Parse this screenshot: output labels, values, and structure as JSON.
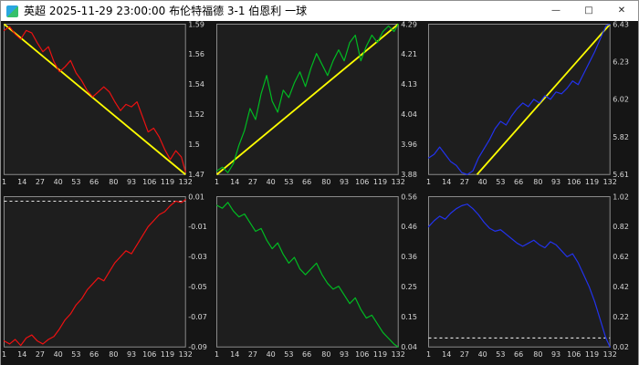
{
  "window": {
    "title": "英超 2025-11-29 23:00:00 布伦特福德 3-1 伯恩利 一球",
    "controls": {
      "minimize": "—",
      "maximize": "□",
      "close": "✕"
    }
  },
  "colors": {
    "plot_bg": "#1e1e1e",
    "border": "#8a8a8a",
    "axis_text": "#d8d8d8",
    "trend": "#ffff00",
    "ref_line": "#ffffff",
    "red": "#ee1111",
    "green": "#00bb22",
    "blue": "#2233ee"
  },
  "chart_data": [
    {
      "id": "top-left-red-odds",
      "type": "line",
      "line_color": "#ee1111",
      "ylim": [
        1.47,
        1.59
      ],
      "ytick_labels": [
        "1.59",
        "1.56",
        "1.54",
        "1.52",
        "1.5",
        "1.47"
      ],
      "xticks": [
        1,
        14,
        27,
        40,
        53,
        66,
        80,
        93,
        106,
        119,
        132
      ],
      "x": [
        1,
        5,
        9,
        13,
        17,
        21,
        25,
        29,
        33,
        37,
        41,
        45,
        49,
        53,
        57,
        61,
        65,
        69,
        73,
        77,
        81,
        85,
        89,
        93,
        97,
        101,
        105,
        109,
        113,
        117,
        121,
        125,
        129,
        132
      ],
      "values": [
        1.585,
        1.588,
        1.582,
        1.578,
        1.585,
        1.583,
        1.575,
        1.568,
        1.572,
        1.56,
        1.552,
        1.556,
        1.561,
        1.551,
        1.545,
        1.537,
        1.532,
        1.536,
        1.54,
        1.536,
        1.528,
        1.521,
        1.526,
        1.524,
        1.528,
        1.516,
        1.504,
        1.507,
        1.5,
        1.49,
        1.482,
        1.489,
        1.484,
        1.472
      ],
      "trend_line": {
        "x1": 1,
        "v1": 1.59,
        "x2": 132,
        "v2": 1.47
      },
      "ref_line": null
    },
    {
      "id": "top-middle-green-odds",
      "type": "line",
      "line_color": "#00bb22",
      "ylim": [
        3.88,
        4.29
      ],
      "ytick_labels": [
        "4.29",
        "4.21",
        "4.13",
        "4.04",
        "3.96",
        "3.88"
      ],
      "xticks": [
        1,
        14,
        27,
        40,
        53,
        66,
        80,
        93,
        106,
        119,
        132
      ],
      "x": [
        1,
        5,
        9,
        13,
        17,
        21,
        25,
        29,
        33,
        37,
        41,
        45,
        49,
        53,
        57,
        61,
        65,
        69,
        73,
        77,
        81,
        85,
        89,
        93,
        97,
        101,
        105,
        109,
        113,
        117,
        121,
        125,
        129,
        132
      ],
      "values": [
        3.89,
        3.9,
        3.885,
        3.91,
        3.96,
        4.0,
        4.06,
        4.03,
        4.1,
        4.15,
        4.08,
        4.05,
        4.11,
        4.09,
        4.13,
        4.16,
        4.12,
        4.17,
        4.21,
        4.18,
        4.15,
        4.19,
        4.22,
        4.19,
        4.24,
        4.26,
        4.19,
        4.23,
        4.26,
        4.24,
        4.27,
        4.285,
        4.27,
        4.29
      ],
      "trend_line": {
        "x1": 1,
        "v1": 3.88,
        "x2": 132,
        "v2": 4.29
      },
      "ref_line": null
    },
    {
      "id": "top-right-blue-odds",
      "type": "line",
      "line_color": "#2233ee",
      "ylim": [
        5.61,
        6.43
      ],
      "ytick_labels": [
        "6.43",
        "6.23",
        "6.02",
        "5.82",
        "5.61"
      ],
      "xticks": [
        1,
        14,
        27,
        40,
        53,
        66,
        80,
        93,
        106,
        119,
        132
      ],
      "x": [
        1,
        5,
        9,
        13,
        17,
        21,
        25,
        29,
        33,
        37,
        41,
        45,
        49,
        53,
        57,
        61,
        65,
        69,
        73,
        77,
        81,
        85,
        89,
        93,
        97,
        101,
        105,
        109,
        113,
        117,
        121,
        125,
        129,
        132
      ],
      "values": [
        5.7,
        5.72,
        5.76,
        5.72,
        5.68,
        5.66,
        5.62,
        5.61,
        5.63,
        5.7,
        5.75,
        5.8,
        5.86,
        5.9,
        5.88,
        5.93,
        5.97,
        6.0,
        5.98,
        6.02,
        6.0,
        6.04,
        6.02,
        6.06,
        6.05,
        6.08,
        6.12,
        6.1,
        6.16,
        6.22,
        6.28,
        6.35,
        6.42,
        6.43
      ],
      "trend_line": {
        "x1": 36,
        "v1": 5.61,
        "x2": 132,
        "v2": 6.43
      },
      "ref_line": null
    },
    {
      "id": "bottom-left-red-index",
      "type": "line",
      "line_color": "#ee1111",
      "ylim": [
        -0.09,
        0.01
      ],
      "ytick_labels": [
        "0.01",
        "-0.01",
        "-0.03",
        "-0.05",
        "-0.07",
        "-0.09"
      ],
      "xticks": [
        1,
        14,
        27,
        40,
        53,
        66,
        80,
        93,
        106,
        119,
        132
      ],
      "x": [
        1,
        5,
        9,
        13,
        17,
        21,
        25,
        29,
        33,
        37,
        41,
        45,
        49,
        53,
        57,
        61,
        65,
        69,
        73,
        77,
        81,
        85,
        89,
        93,
        97,
        101,
        105,
        109,
        113,
        117,
        121,
        125,
        129,
        132
      ],
      "values": [
        -0.086,
        -0.088,
        -0.085,
        -0.089,
        -0.084,
        -0.082,
        -0.086,
        -0.088,
        -0.085,
        -0.083,
        -0.078,
        -0.072,
        -0.068,
        -0.062,
        -0.058,
        -0.052,
        -0.048,
        -0.044,
        -0.046,
        -0.04,
        -0.034,
        -0.03,
        -0.026,
        -0.028,
        -0.022,
        -0.016,
        -0.01,
        -0.006,
        -0.002,
        0.0,
        0.004,
        0.007,
        0.006,
        0.008
      ],
      "trend_line": null,
      "ref_line": 0.007
    },
    {
      "id": "bottom-middle-green-index",
      "type": "line",
      "line_color": "#00bb22",
      "ylim": [
        0.04,
        0.56
      ],
      "ytick_labels": [
        "0.56",
        "0.46",
        "0.36",
        "0.25",
        "0.15",
        "0.04"
      ],
      "xticks": [
        1,
        14,
        27,
        40,
        53,
        66,
        80,
        93,
        106,
        119,
        132
      ],
      "x": [
        1,
        5,
        9,
        13,
        17,
        21,
        25,
        29,
        33,
        37,
        41,
        45,
        49,
        53,
        57,
        61,
        65,
        69,
        73,
        77,
        81,
        85,
        89,
        93,
        97,
        101,
        105,
        109,
        113,
        117,
        121,
        125,
        129,
        132
      ],
      "values": [
        0.53,
        0.52,
        0.54,
        0.51,
        0.49,
        0.5,
        0.47,
        0.44,
        0.45,
        0.41,
        0.38,
        0.4,
        0.36,
        0.33,
        0.35,
        0.31,
        0.29,
        0.31,
        0.33,
        0.29,
        0.26,
        0.24,
        0.25,
        0.22,
        0.19,
        0.21,
        0.17,
        0.14,
        0.15,
        0.12,
        0.09,
        0.07,
        0.05,
        0.04
      ],
      "trend_line": null,
      "ref_line": null
    },
    {
      "id": "bottom-right-blue-index",
      "type": "line",
      "line_color": "#2233ee",
      "ylim": [
        0.02,
        1.02
      ],
      "ytick_labels": [
        "1.02",
        "0.82",
        "0.62",
        "0.42",
        "0.22",
        "0.02"
      ],
      "xticks": [
        1,
        14,
        27,
        40,
        53,
        66,
        80,
        93,
        106,
        119,
        132
      ],
      "x": [
        1,
        5,
        9,
        13,
        17,
        21,
        25,
        29,
        33,
        37,
        41,
        45,
        49,
        53,
        57,
        61,
        65,
        69,
        73,
        77,
        81,
        85,
        89,
        93,
        97,
        101,
        105,
        109,
        113,
        117,
        121,
        125,
        129,
        132
      ],
      "values": [
        0.82,
        0.86,
        0.89,
        0.87,
        0.91,
        0.94,
        0.96,
        0.97,
        0.94,
        0.9,
        0.85,
        0.81,
        0.79,
        0.8,
        0.77,
        0.74,
        0.71,
        0.69,
        0.71,
        0.73,
        0.7,
        0.68,
        0.72,
        0.7,
        0.66,
        0.62,
        0.64,
        0.58,
        0.5,
        0.42,
        0.32,
        0.2,
        0.08,
        0.02
      ],
      "trend_line": null,
      "ref_line": 0.08
    }
  ]
}
